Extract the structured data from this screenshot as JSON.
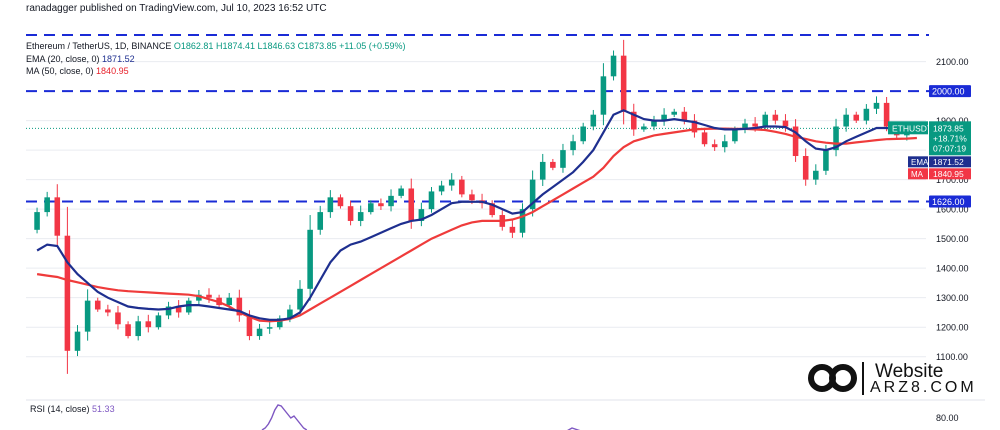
{
  "publisher": "ranadagger published on TradingView.com, Jul 10, 2023 16:52 UTC",
  "symbol_line": {
    "name": "Ethereum / TetherUS, 1D, BINANCE",
    "open": "O1862.81",
    "high": "H1874.41",
    "low": "L1846.63",
    "close": "C1873.85",
    "change": "+11.05 (+0.59%)"
  },
  "ema_line": {
    "label": "EMA (20, close, 0)",
    "value": "1871.52"
  },
  "ma_line": {
    "label": "MA (50, close, 0)",
    "value": "1840.95"
  },
  "rsi_line": {
    "label": "RSI (14, close)",
    "value": "51.33"
  },
  "price_tag": {
    "symbol": "ETHUSDT",
    "price": "1873.85",
    "change": "+18.71%",
    "countdown": "07:07:19"
  },
  "ema_tag": {
    "label": "EMA",
    "value": "1871.52"
  },
  "ma_tag": {
    "label": "MA",
    "value": "1840.95"
  },
  "watermark": {
    "site": "Website",
    "domain": "ARZ8.COM"
  },
  "colors": {
    "up": "#089981",
    "down": "#f23645",
    "ema": "#1e2f8f",
    "ma": "#ef3b3b",
    "level": "#1a2bd6",
    "rsi": "#7e57c2",
    "axis_text": "#131722",
    "grid": "#e9ecf1"
  },
  "chart_data": {
    "type": "candlestick",
    "title": "Ethereum / TetherUS, 1D, BINANCE",
    "ylim": [
      1055,
      2190
    ],
    "yticks": [
      1100,
      1200,
      1300,
      1400,
      1500,
      1600,
      1700,
      1800,
      1900,
      2100
    ],
    "ytick_labels": [
      "1100.00",
      "1200.00",
      "1300.00",
      "1400.00",
      "1500.00",
      "1600.00",
      "1700.00",
      "1800.00",
      "1900.00",
      "2100.00"
    ],
    "levels": [
      {
        "value": 2190,
        "label": ""
      },
      {
        "value": 2000,
        "label": "2000.00"
      },
      {
        "value": 1626,
        "label": "1626.00"
      }
    ],
    "last_price": 1873.85,
    "close": [
      1590,
      1640,
      1510,
      1120,
      1185,
      1290,
      1260,
      1250,
      1210,
      1170,
      1220,
      1200,
      1240,
      1270,
      1250,
      1290,
      1310,
      1300,
      1275,
      1300,
      1240,
      1170,
      1195,
      1200,
      1230,
      1260,
      1330,
      1530,
      1590,
      1640,
      1610,
      1560,
      1590,
      1620,
      1610,
      1645,
      1670,
      1560,
      1600,
      1660,
      1680,
      1700,
      1650,
      1630,
      1620,
      1580,
      1540,
      1520,
      1600,
      1700,
      1760,
      1740,
      1800,
      1830,
      1880,
      1920,
      2050,
      2120,
      1930,
      1870,
      1880,
      1900,
      1920,
      1930,
      1900,
      1860,
      1820,
      1810,
      1830,
      1870,
      1890,
      1880,
      1920,
      1900,
      1880,
      1780,
      1700,
      1730,
      1800,
      1880,
      1920,
      1900,
      1940,
      1960,
      1880,
      1850,
      1870,
      1873.85
    ],
    "ema": [
      1460,
      1480,
      1475,
      1420,
      1380,
      1350,
      1320,
      1300,
      1285,
      1270,
      1265,
      1262,
      1260,
      1262,
      1270,
      1275,
      1275,
      1270,
      1265,
      1260,
      1255,
      1240,
      1230,
      1225,
      1225,
      1230,
      1250,
      1300,
      1360,
      1420,
      1460,
      1480,
      1490,
      1505,
      1520,
      1535,
      1550,
      1560,
      1565,
      1580,
      1600,
      1620,
      1625,
      1625,
      1625,
      1615,
      1600,
      1585,
      1590,
      1620,
      1650,
      1675,
      1700,
      1725,
      1760,
      1800,
      1860,
      1920,
      1935,
      1920,
      1905,
      1900,
      1900,
      1905,
      1900,
      1895,
      1885,
      1875,
      1870,
      1870,
      1872,
      1875,
      1880,
      1880,
      1878,
      1860,
      1830,
      1805,
      1800,
      1810,
      1830,
      1845,
      1860,
      1875,
      1875,
      1870,
      1870,
      1871.52
    ],
    "ma": [
      1380,
      1375,
      1370,
      1360,
      1352,
      1344,
      1336,
      1330,
      1325,
      1322,
      1320,
      1318,
      1316,
      1314,
      1312,
      1310,
      1305,
      1295,
      1285,
      1270,
      1250,
      1235,
      1222,
      1220,
      1222,
      1228,
      1240,
      1260,
      1280,
      1300,
      1320,
      1340,
      1360,
      1380,
      1400,
      1420,
      1440,
      1460,
      1480,
      1500,
      1515,
      1530,
      1545,
      1555,
      1560,
      1560,
      1560,
      1565,
      1575,
      1590,
      1610,
      1630,
      1650,
      1670,
      1690,
      1710,
      1740,
      1780,
      1810,
      1830,
      1840,
      1850,
      1855,
      1860,
      1865,
      1870,
      1872,
      1873,
      1873,
      1872,
      1872,
      1870,
      1868,
      1862,
      1855,
      1845,
      1838,
      1830,
      1825,
      1822,
      1822,
      1826,
      1830,
      1834,
      1837,
      1838,
      1839,
      1840.95
    ],
    "rsi": {
      "value": 51.33,
      "tick_label": "80.00"
    }
  }
}
